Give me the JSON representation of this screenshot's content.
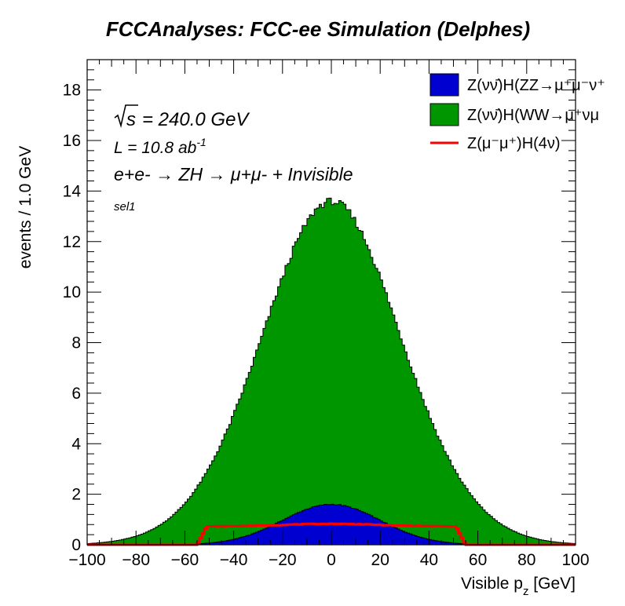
{
  "chart_data": {
    "type": "histogram",
    "title": "FCCAnalyses: FCC-ee Simulation (Delphes)",
    "xlabel": "Visible p_z [GeV]",
    "xlabel_main": "Visible p",
    "xlabel_sub": "z",
    "xlabel_unit": " [GeV]",
    "ylabel": "events / 1.0 GeV",
    "xlim": [
      -100,
      100
    ],
    "ylim": [
      0,
      19.2
    ],
    "bin_width": 1.0,
    "x_ticks": [
      "−100",
      "−80",
      "−60",
      "−40",
      "−20",
      "0",
      "20",
      "40",
      "60",
      "80",
      "100"
    ],
    "x_tick_values": [
      -100,
      -80,
      -60,
      -40,
      -20,
      0,
      20,
      40,
      60,
      80,
      100
    ],
    "y_ticks": [
      "0",
      "2",
      "4",
      "6",
      "8",
      "10",
      "12",
      "14",
      "16",
      "18"
    ],
    "y_tick_values": [
      0,
      2,
      4,
      6,
      8,
      10,
      12,
      14,
      16,
      18
    ],
    "grid": false,
    "legend_placement": "top-right",
    "annotations": {
      "sqrt_s": "= 240.0 GeV",
      "lumi": "L = 10.8 ab",
      "lumi_exp": "-1",
      "process": "e+e- → ZH → μ+μ- + Invisible",
      "selection": "sel1"
    },
    "series": [
      {
        "name": "Z(νν̄)H(ZZ→μ+μ-ν+ν-)",
        "legend_label": "Z(νν̄)H(ZZ→μ⁺μ⁻ν⁺",
        "style": "stacked-fill",
        "color": "#0000d0",
        "shape": {
          "kind": "gauss",
          "peak": 1.6,
          "mean": 0,
          "sigma": 20,
          "range": [
            -80,
            80
          ]
        }
      },
      {
        "name": "Z(νν̄)H(WW→μ+νμ-ν)",
        "legend_label": "Z(νν̄)H(WW→μ⁺νμ",
        "style": "stacked-fill",
        "color": "#009600",
        "shape": {
          "kind": "gauss",
          "peak": 12.0,
          "mean": 0,
          "sigma": 30,
          "range": [
            -100,
            100
          ]
        }
      },
      {
        "name": "Z(μ-μ+)H(4ν)",
        "legend_label": "Z(μ⁻μ⁺)H(4ν)",
        "style": "line",
        "color": "#ff0000",
        "shape": {
          "kind": "plateau",
          "plateau": 0.72,
          "center": 0.83,
          "range": [
            -55,
            55
          ]
        }
      }
    ]
  }
}
